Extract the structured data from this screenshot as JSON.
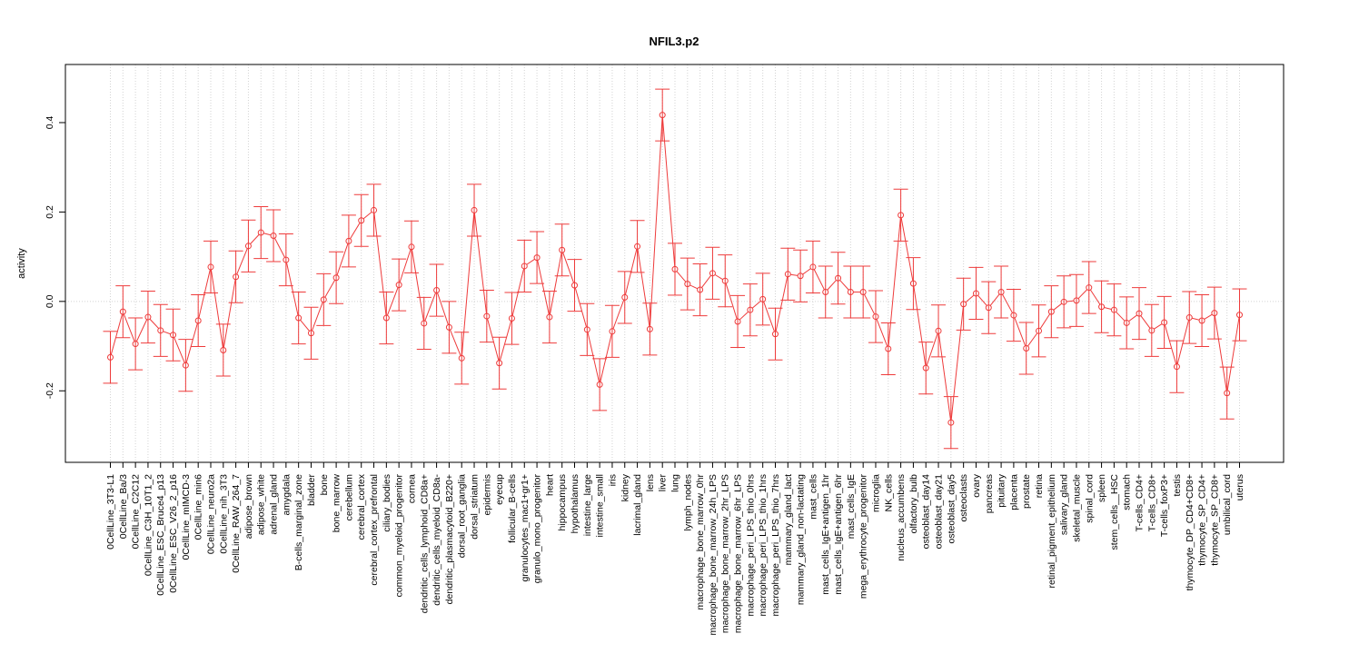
{
  "chart_data": {
    "type": "line",
    "title": "NFIL3.p2",
    "xlabel": "",
    "ylabel": "activity",
    "ylim": [
      -0.36,
      0.53
    ],
    "yticks": [
      -0.2,
      0.0,
      0.2,
      0.4
    ],
    "ytick_labels": [
      "-0.2",
      "0.0",
      "0.2",
      "0.4"
    ],
    "reference_line": 0.0,
    "grid": "vertical dotted",
    "color": "#ee3b3b",
    "error_bar_halfwidth": 0.058,
    "categories": [
      "0CellLine_3T3-L1",
      "0CellLine_Ba/3",
      "0CellLine_C2C12",
      "0CellLine_C3H_10T1_2",
      "0CellLine_ESC_Bruce4_p13",
      "0CellLine_ESC_V26_2_p16",
      "0CellLine_mIMCD-3",
      "0CellLine_min6",
      "0CellLine_neuro2a",
      "0CellLine_nih_3T3",
      "0CellLine_RAW_264_7",
      "adipose_brown",
      "adipose_white",
      "adrenal_gland",
      "amygdala",
      "B-cells_marginal_zone",
      "bladder",
      "bone",
      "bone_marrow",
      "cerebellum",
      "cerebral_cortex",
      "cerebral_cortex_prefrontal",
      "ciliary_bodies",
      "common_myeloid_progenitor",
      "cornea",
      "dendritic_cells_lymphoid_CD8a+",
      "dendritic_cells_myeloid_CD8a-",
      "dendritic_plasmacytoid_B220+",
      "dorsal_root_ganglia",
      "dorsal_striatum",
      "epidermis",
      "eyecup",
      "follicular_B-cells",
      "granulocytes_mac1+gr1+",
      "granulo_mono_progenitor",
      "heart",
      "hippocampus",
      "hypothalamus",
      "intestine_large",
      "intestine_small",
      "iris",
      "kidney",
      "lacrimal_gland",
      "lens",
      "liver",
      "lung",
      "lymph_nodes",
      "macrophage_bone_marrow_0hr",
      "macrophage_bone_marrow_24h_LPS",
      "macrophage_bone_marrow_2hr_LPS",
      "macrophage_bone_marrow_6hr_LPS",
      "macrophage_peri_LPS_thio_0hrs",
      "macrophage_peri_LPS_thio_1hrs",
      "macrophage_peri_LPS_thio_7hrs",
      "mammary_gland_lact",
      "mammary_gland_non-lactating",
      "mast_cells",
      "mast_cells_IgE+antigen_1hr",
      "mast_cells_IgE+antigen_6hr",
      "mast_cells_IgE",
      "mega_erythrocyte_progenitor",
      "microglia",
      "NK_cells",
      "nucleus_accumbens",
      "olfactory_bulb",
      "osteoblast_day14",
      "osteoblast_day21",
      "osteoblast_day5",
      "osteoclasts",
      "ovary",
      "pancreas",
      "pituitary",
      "placenta",
      "prostate",
      "retina",
      "retinal_pigment_epithelium",
      "salivary_gland",
      "skeletal_muscle",
      "spinal_cord",
      "spleen",
      "stem_cells__HSC",
      "stomach",
      "T-cells_CD4+",
      "T-cells_CD8+",
      "T-cells_foxP3+",
      "testis",
      "thymocyte_DP_CD4+CD8+",
      "thymocyte_SP_CD4+",
      "thymocyte_SP_CD8+",
      "umbilical_cord",
      "uterus"
    ],
    "series": [
      {
        "values": [
          -0.125,
          -0.023,
          -0.095,
          -0.035,
          -0.065,
          -0.075,
          -0.143,
          -0.043,
          0.077,
          -0.109,
          0.055,
          0.124,
          0.154,
          0.147,
          0.093,
          -0.037,
          -0.071,
          0.004,
          0.053,
          0.135,
          0.181,
          0.204,
          -0.037,
          0.037,
          0.122,
          -0.049,
          0.025,
          -0.058,
          -0.127,
          0.204,
          -0.033,
          -0.138,
          -0.038,
          0.079,
          0.098,
          -0.035,
          0.115,
          0.036,
          -0.063,
          -0.186,
          -0.067,
          0.009,
          0.123,
          -0.062,
          0.417,
          0.072,
          0.039,
          0.026,
          0.063,
          0.046,
          -0.045,
          -0.019,
          0.005,
          -0.073,
          0.061,
          0.057,
          0.077,
          0.021,
          0.052,
          0.021,
          0.021,
          -0.034,
          -0.106,
          0.193,
          0.04,
          -0.149,
          -0.066,
          -0.271,
          -0.006,
          0.018,
          -0.014,
          0.021,
          -0.031,
          -0.105,
          -0.066,
          -0.023,
          -0.001,
          0.002,
          0.031,
          -0.012,
          -0.019,
          -0.048,
          -0.027,
          -0.065,
          -0.047,
          -0.146,
          -0.036,
          -0.043,
          -0.026,
          -0.205,
          -0.03
        ]
      }
    ]
  }
}
